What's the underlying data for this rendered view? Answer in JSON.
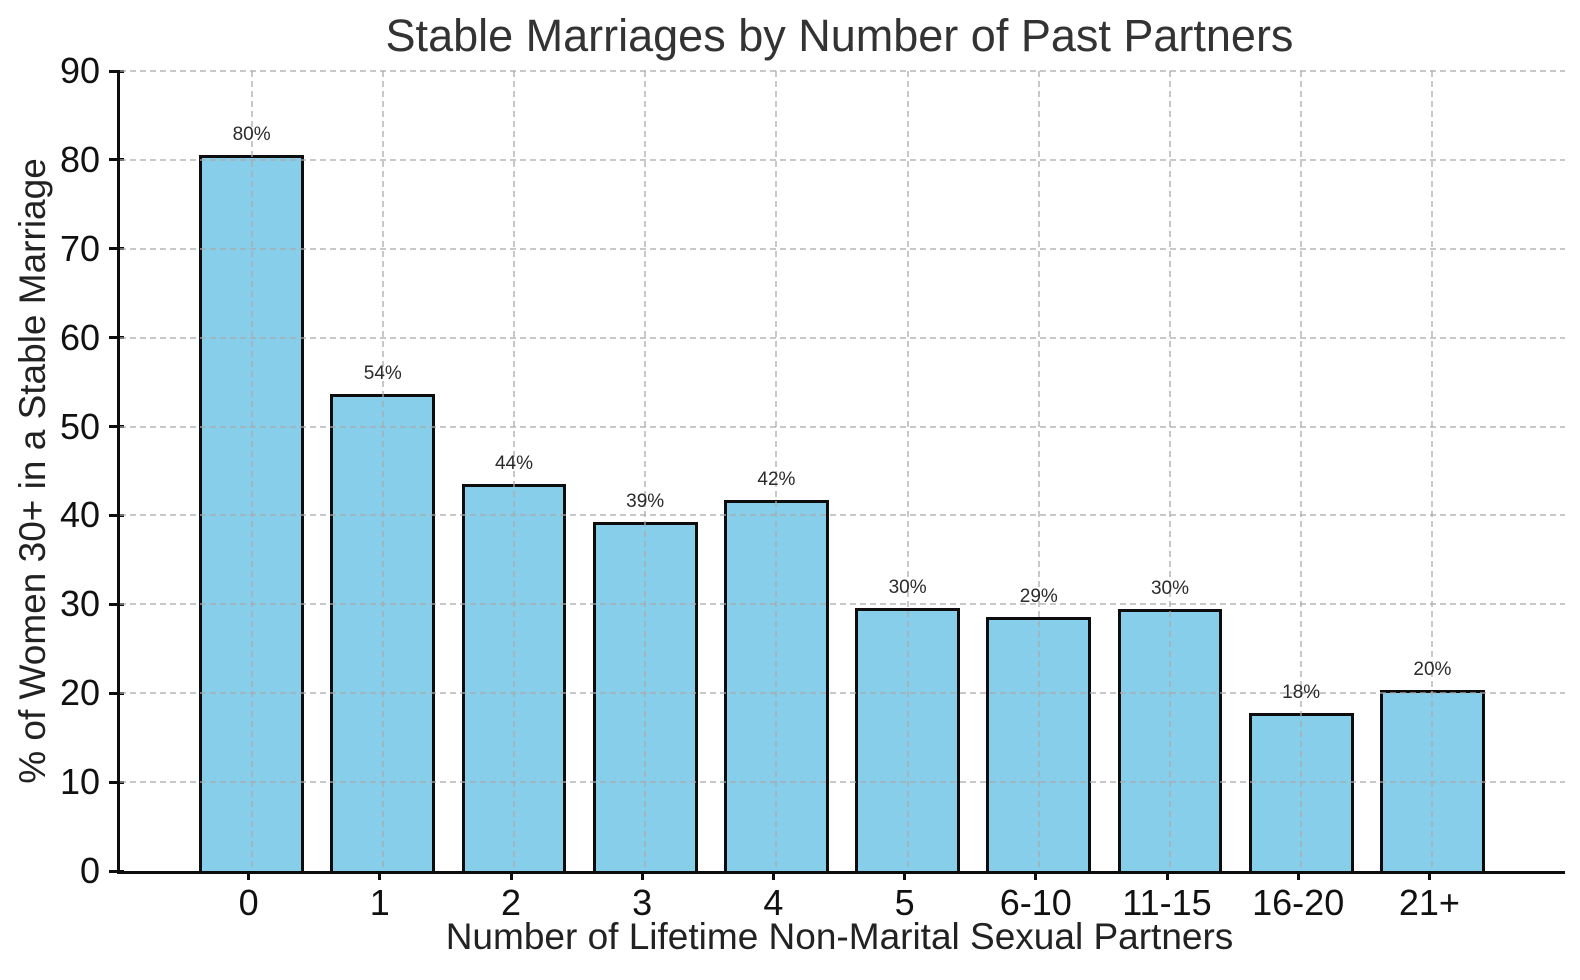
{
  "chart_data": {
    "type": "bar",
    "title": "Stable Marriages by Number of Past Partners",
    "xlabel": "Number of Lifetime Non-Marital Sexual Partners",
    "ylabel": "% of Women 30+ in a Stable Marriage",
    "categories": [
      "0",
      "1",
      "2",
      "3",
      "4",
      "5",
      "6-10",
      "11-15",
      "16-20",
      "21+"
    ],
    "values": [
      80.5,
      53.7,
      43.5,
      39.3,
      41.7,
      29.6,
      28.6,
      29.5,
      17.8,
      20.4
    ],
    "bar_labels": [
      "80%",
      "54%",
      "44%",
      "39%",
      "42%",
      "30%",
      "29%",
      "30%",
      "18%",
      "20%"
    ],
    "ylim": [
      0,
      90
    ],
    "yticks": [
      0,
      10,
      20,
      30,
      40,
      50,
      60,
      70,
      80,
      90
    ],
    "grid": "dashed, horizontal and vertical, drawn over bars",
    "legend": "none",
    "bar_width_fraction": 0.8,
    "colors": {
      "bar_fill": "#87CEEB",
      "bar_edge": "#0d0d0d",
      "grid": "#c8c8c8",
      "spine": "#0d0d0d",
      "title_text": "#333333",
      "tick_text": "#111111",
      "label_text": "#222222",
      "background": "#ffffff"
    }
  }
}
